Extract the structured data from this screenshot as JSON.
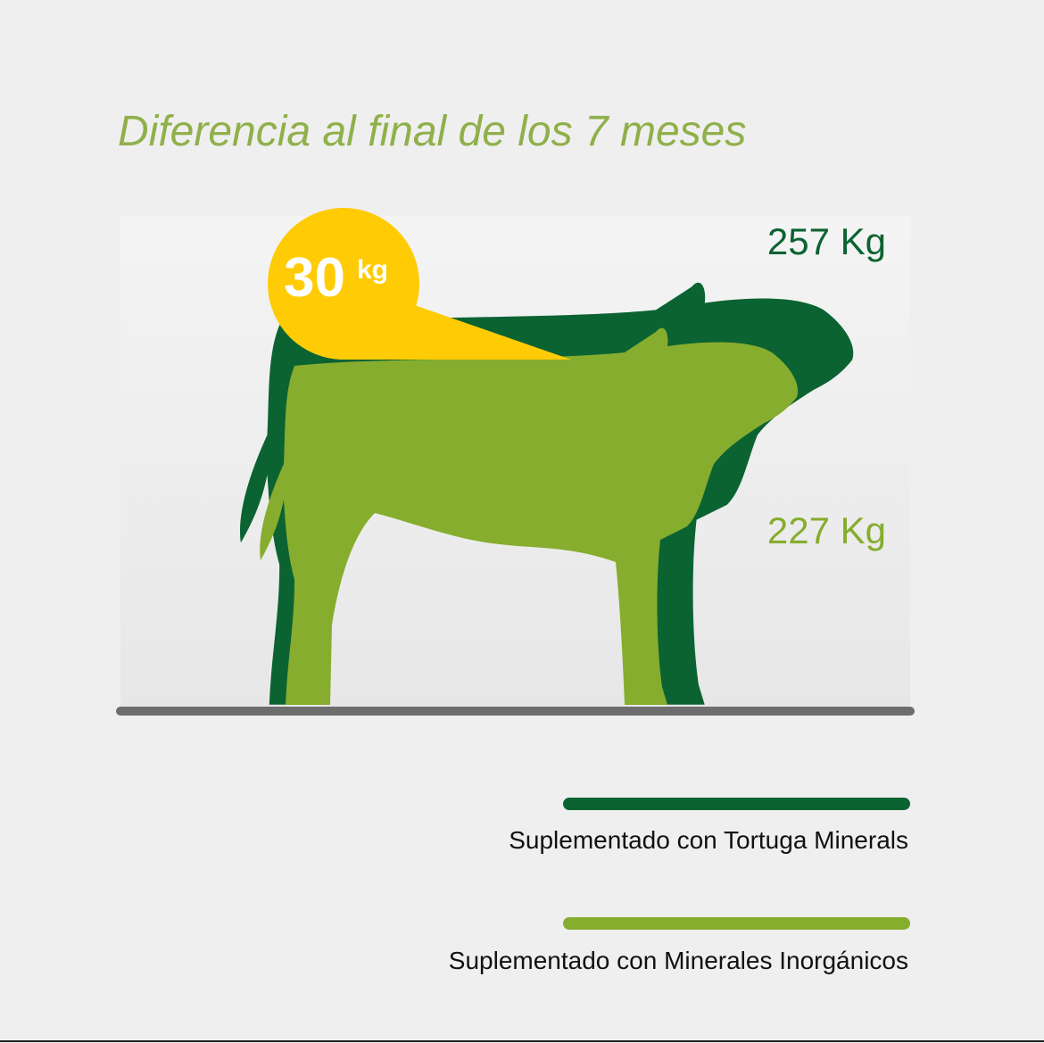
{
  "title": "Diferencia al final de los 7 meses",
  "callout": {
    "value": "30",
    "unit": "kg",
    "color": "#ffcb05"
  },
  "weights": [
    {
      "label": "257 Kg"
    },
    {
      "label": "227 Kg"
    }
  ],
  "legend": [
    {
      "label": "Suplementado con Tortuga Minerals",
      "color": "#0b6332"
    },
    {
      "label": "Suplementado con Minerales Inorgánicos",
      "color": "#86ad2e"
    }
  ]
}
